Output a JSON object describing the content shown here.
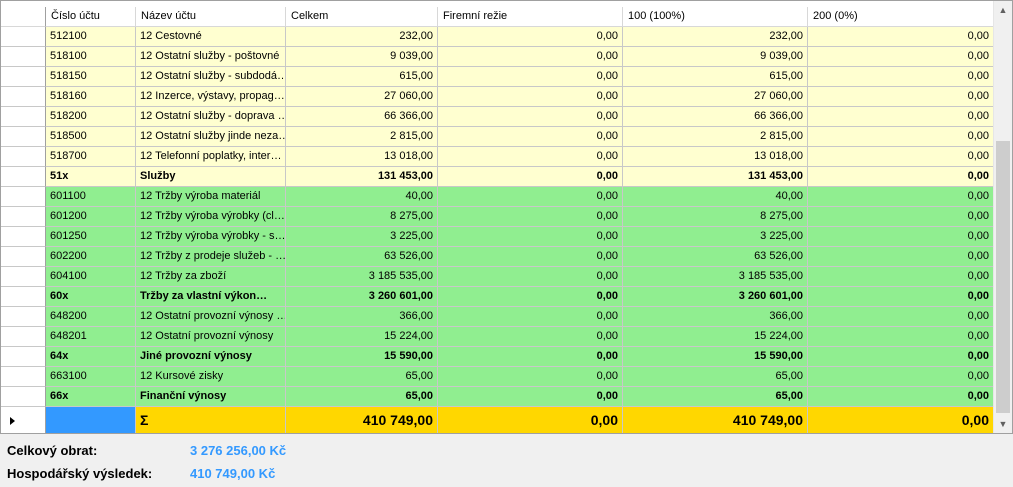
{
  "columns": [
    "Číslo účtu",
    "Název účtu",
    "Celkem",
    "Firemní režie",
    "100 (100%)",
    "200 (0%)"
  ],
  "rows": [
    {
      "style": "yellow",
      "cells": [
        "512100",
        "12 Cestovné",
        "232,00",
        "0,00",
        "232,00",
        "0,00"
      ]
    },
    {
      "style": "yellow",
      "cells": [
        "518100",
        "12 Ostatní služby - poštovné",
        "9 039,00",
        "0,00",
        "9 039,00",
        "0,00"
      ]
    },
    {
      "style": "yellow",
      "cells": [
        "518150",
        "12 Ostatní služby - subdodá…",
        "615,00",
        "0,00",
        "615,00",
        "0,00"
      ]
    },
    {
      "style": "yellow",
      "cells": [
        "518160",
        "12 Inzerce, výstavy, propag…",
        "27 060,00",
        "0,00",
        "27 060,00",
        "0,00"
      ]
    },
    {
      "style": "yellow",
      "cells": [
        "518200",
        "12 Ostatní služby - doprava …",
        "66 366,00",
        "0,00",
        "66 366,00",
        "0,00"
      ]
    },
    {
      "style": "yellow",
      "cells": [
        "518500",
        "12 Ostatní služby jinde neza…",
        "2 815,00",
        "0,00",
        "2 815,00",
        "0,00"
      ]
    },
    {
      "style": "yellow",
      "cells": [
        "518700",
        "12 Telefonní poplatky, inter…",
        "13 018,00",
        "0,00",
        "13 018,00",
        "0,00"
      ]
    },
    {
      "style": "yellow bold",
      "cells": [
        "51x",
        "Služby",
        "131 453,00",
        "0,00",
        "131 453,00",
        "0,00"
      ]
    },
    {
      "style": "green",
      "cells": [
        "601100",
        "12 Tržby výroba materiál",
        "40,00",
        "0,00",
        "40,00",
        "0,00"
      ]
    },
    {
      "style": "green",
      "cells": [
        "601200",
        "12 Tržby výroba výrobky (cl…",
        "8 275,00",
        "0,00",
        "8 275,00",
        "0,00"
      ]
    },
    {
      "style": "green",
      "cells": [
        "601250",
        "12 Tržby výroba výrobky - s…",
        "3 225,00",
        "0,00",
        "3 225,00",
        "0,00"
      ]
    },
    {
      "style": "green",
      "cells": [
        "602200",
        "12 Tržby z prodeje služeb - …",
        "63 526,00",
        "0,00",
        "63 526,00",
        "0,00"
      ]
    },
    {
      "style": "green",
      "cells": [
        "604100",
        "12 Tržby za zboží",
        "3 185 535,00",
        "0,00",
        "3 185 535,00",
        "0,00"
      ]
    },
    {
      "style": "green bold",
      "cells": [
        "60x",
        "Tržby za vlastní výkon…",
        "3 260 601,00",
        "0,00",
        "3 260 601,00",
        "0,00"
      ]
    },
    {
      "style": "green",
      "cells": [
        "648200",
        "12 Ostatní provozní výnosy …",
        "366,00",
        "0,00",
        "366,00",
        "0,00"
      ]
    },
    {
      "style": "green",
      "cells": [
        "648201",
        "12 Ostatní provozní výnosy",
        "15 224,00",
        "0,00",
        "15 224,00",
        "0,00"
      ]
    },
    {
      "style": "green bold",
      "cells": [
        "64x",
        "Jiné provozní výnosy",
        "15 590,00",
        "0,00",
        "15 590,00",
        "0,00"
      ]
    },
    {
      "style": "green",
      "cells": [
        "663100",
        "12 Kursové zisky",
        "65,00",
        "0,00",
        "65,00",
        "0,00"
      ]
    },
    {
      "style": "green bold",
      "cells": [
        "66x",
        "Finanční výnosy",
        "65,00",
        "0,00",
        "65,00",
        "0,00"
      ]
    }
  ],
  "summary": {
    "account": "",
    "name": "Σ",
    "celkem": "410 749,00",
    "rezie": "0,00",
    "c100": "410 749,00",
    "c200": "0,00"
  },
  "footer": {
    "obrat_label": "Celkový obrat:",
    "obrat_value": "3 276 256,00 Kč",
    "vysledek_label": "Hospodářský výsledek:",
    "vysledek_value": "410 749,00 Kč"
  },
  "colors": {
    "yellow": "#ffffd0",
    "green": "#90ee90",
    "sum": "#ffd700",
    "accent": "#3399ff"
  }
}
